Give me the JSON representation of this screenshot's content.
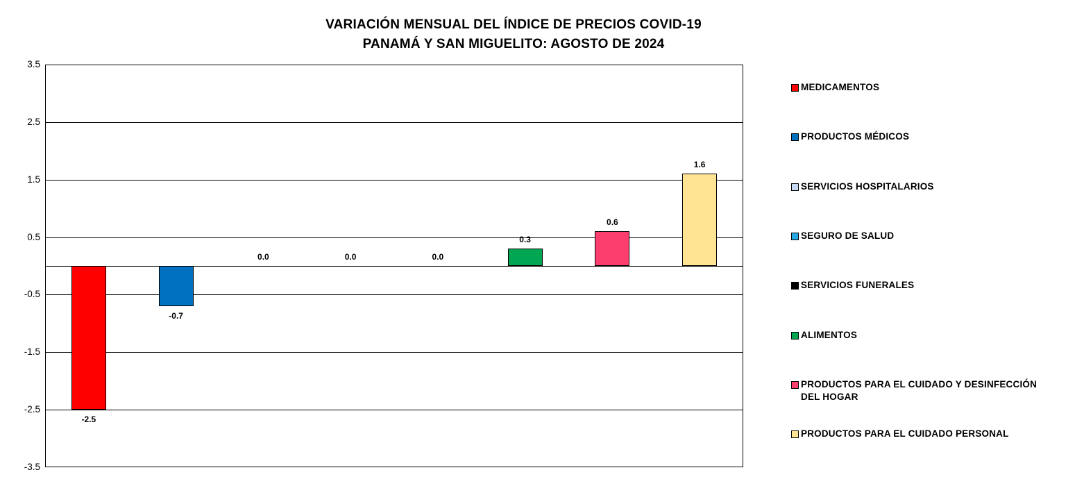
{
  "chart_data": {
    "type": "bar",
    "title_line1": "VARIACIÓN MENSUAL DEL ÍNDICE DE PRECIOS COVID-19",
    "title_line2": "PANAMÁ Y SAN MIGUELITO: AGOSTO DE 2024",
    "xlabel": "",
    "ylabel": "",
    "ylim": [
      -3.5,
      3.5
    ],
    "yticks": [
      "3.5",
      "2.5",
      "1.5",
      "0.5",
      "-0.5",
      "-1.5",
      "-2.5",
      "-3.5"
    ],
    "grid": true,
    "legend_position": "right",
    "series": [
      {
        "name": "MEDICAMENTOS",
        "value": -2.5,
        "label": "-2.5",
        "color": "#FF0000"
      },
      {
        "name": "PRODUCTOS MÉDICOS",
        "value": -0.7,
        "label": "-0.7",
        "color": "#0070C0"
      },
      {
        "name": "SERVICIOS HOSPITALARIOS",
        "value": 0.0,
        "label": "0.0",
        "color": "#C5D9F1"
      },
      {
        "name": "SEGURO DE SALUD",
        "value": 0.0,
        "label": "0.0",
        "color": "#27AAE1"
      },
      {
        "name": "SERVICIOS FUNERALES",
        "value": 0.0,
        "label": "0.0",
        "color": "#000000"
      },
      {
        "name": "ALIMENTOS",
        "value": 0.3,
        "label": "0.3",
        "color": "#00A651"
      },
      {
        "name": "PRODUCTOS PARA EL CUIDADO Y DESINFECCIÓN DEL HOGAR",
        "value": 0.6,
        "label": "0.6",
        "color": "#FC3E6F"
      },
      {
        "name": "PRODUCTOS PARA EL CUIDADO PERSONAL",
        "value": 1.6,
        "label": "1.6",
        "color": "#FFE494"
      }
    ],
    "colors": {
      "background": "#FFFFFF",
      "axis_line": "#000000",
      "gridline": "#000000",
      "text": "#000000"
    }
  }
}
